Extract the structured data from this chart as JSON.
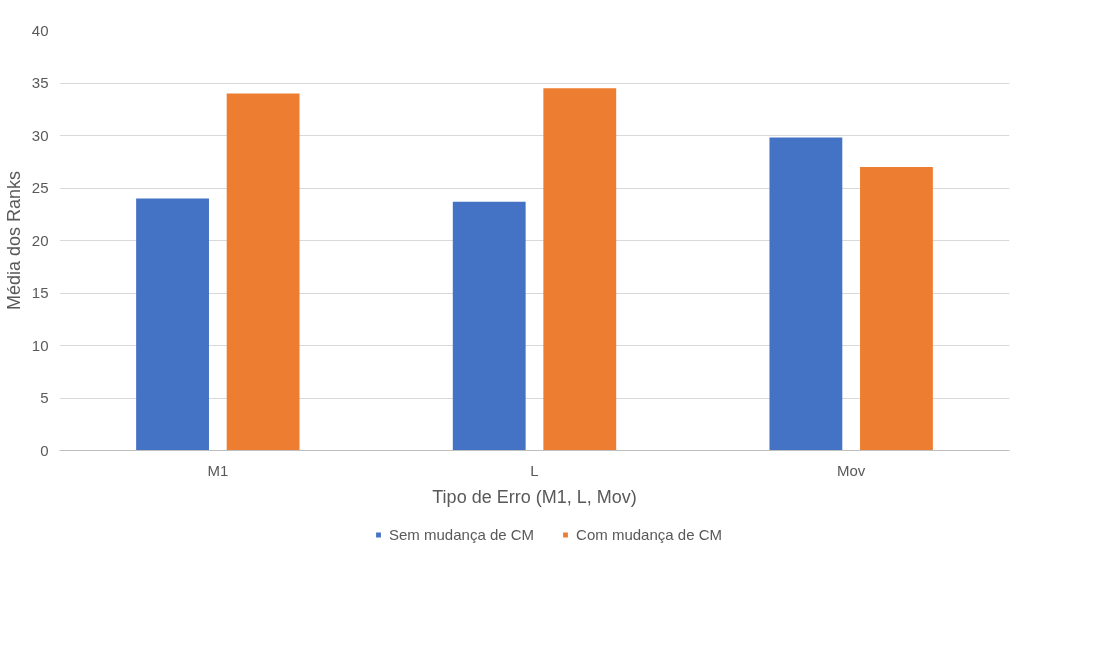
{
  "chart_data": {
    "type": "bar",
    "xlabel": "Tipo de Erro (M1, L, Mov)",
    "ylabel": "Média dos Ranks",
    "categories": [
      "M1",
      "L",
      "Mov"
    ],
    "series": [
      {
        "name": "Sem mudança de CM",
        "color": "#4472c4",
        "values": [
          24,
          23.7,
          29.8
        ]
      },
      {
        "name": "Com mudança de CM",
        "color": "#ed7d31",
        "values": [
          34,
          34.5,
          27
        ]
      }
    ],
    "ylim": [
      0,
      40
    ],
    "yticks": [
      0,
      5,
      10,
      15,
      20,
      25,
      30,
      35,
      40
    ],
    "grid": "y",
    "legend": "bottom"
  }
}
